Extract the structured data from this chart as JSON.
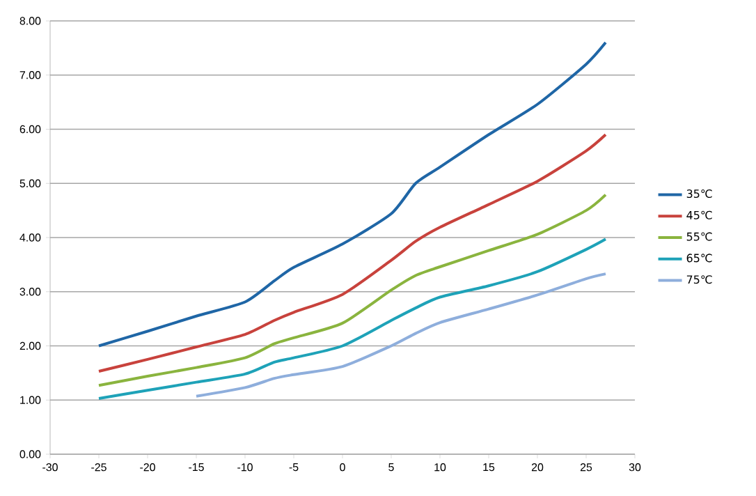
{
  "chart_data": {
    "type": "line",
    "x": [
      -25,
      -20,
      -15,
      -10,
      -7,
      -5,
      0,
      5,
      7.5,
      10,
      15,
      20,
      25,
      27
    ],
    "series": [
      {
        "name": "35℃",
        "color": "#1f66a6",
        "values": [
          2.0,
          2.27,
          2.55,
          2.81,
          3.2,
          3.45,
          3.88,
          4.44,
          5.0,
          5.3,
          5.9,
          6.46,
          7.2,
          7.6
        ]
      },
      {
        "name": "45℃",
        "color": "#c8423c",
        "values": [
          1.53,
          1.75,
          1.98,
          2.21,
          2.47,
          2.62,
          2.95,
          3.58,
          3.93,
          4.19,
          4.61,
          5.04,
          5.6,
          5.9
        ]
      },
      {
        "name": "55℃",
        "color": "#8ab43e",
        "values": [
          1.27,
          1.44,
          1.6,
          1.78,
          2.04,
          2.15,
          2.42,
          3.03,
          3.3,
          3.46,
          3.76,
          4.06,
          4.5,
          4.79
        ]
      },
      {
        "name": "65℃",
        "color": "#1ea2b8",
        "values": [
          1.03,
          1.18,
          1.33,
          1.48,
          1.7,
          1.78,
          2.0,
          2.47,
          2.7,
          2.9,
          3.11,
          3.37,
          3.78,
          3.97
        ]
      },
      {
        "name": "75℃",
        "color": "#8eaedc",
        "values": [
          null,
          null,
          1.07,
          1.23,
          1.4,
          1.47,
          1.62,
          2.0,
          2.23,
          2.43,
          2.68,
          2.94,
          3.24,
          3.33
        ]
      }
    ],
    "xlim": [
      -30,
      30
    ],
    "xticks": [
      -30,
      -25,
      -20,
      -15,
      -10,
      -5,
      0,
      5,
      10,
      15,
      20,
      25,
      30
    ],
    "ylim": [
      0,
      8
    ],
    "yticks": [
      {
        "value": 0,
        "label": "0.00"
      },
      {
        "value": 1,
        "label": "1.00"
      },
      {
        "value": 2,
        "label": "2.00"
      },
      {
        "value": 3,
        "label": "3.00"
      },
      {
        "value": 4,
        "label": "4.00"
      },
      {
        "value": 5,
        "label": "5.00"
      },
      {
        "value": 6,
        "label": "6.00"
      },
      {
        "value": 7,
        "label": "7.00"
      },
      {
        "value": 8,
        "label": "8.00"
      }
    ],
    "grid": "y",
    "legend": "right",
    "marker": "none",
    "line_style": "solid"
  }
}
